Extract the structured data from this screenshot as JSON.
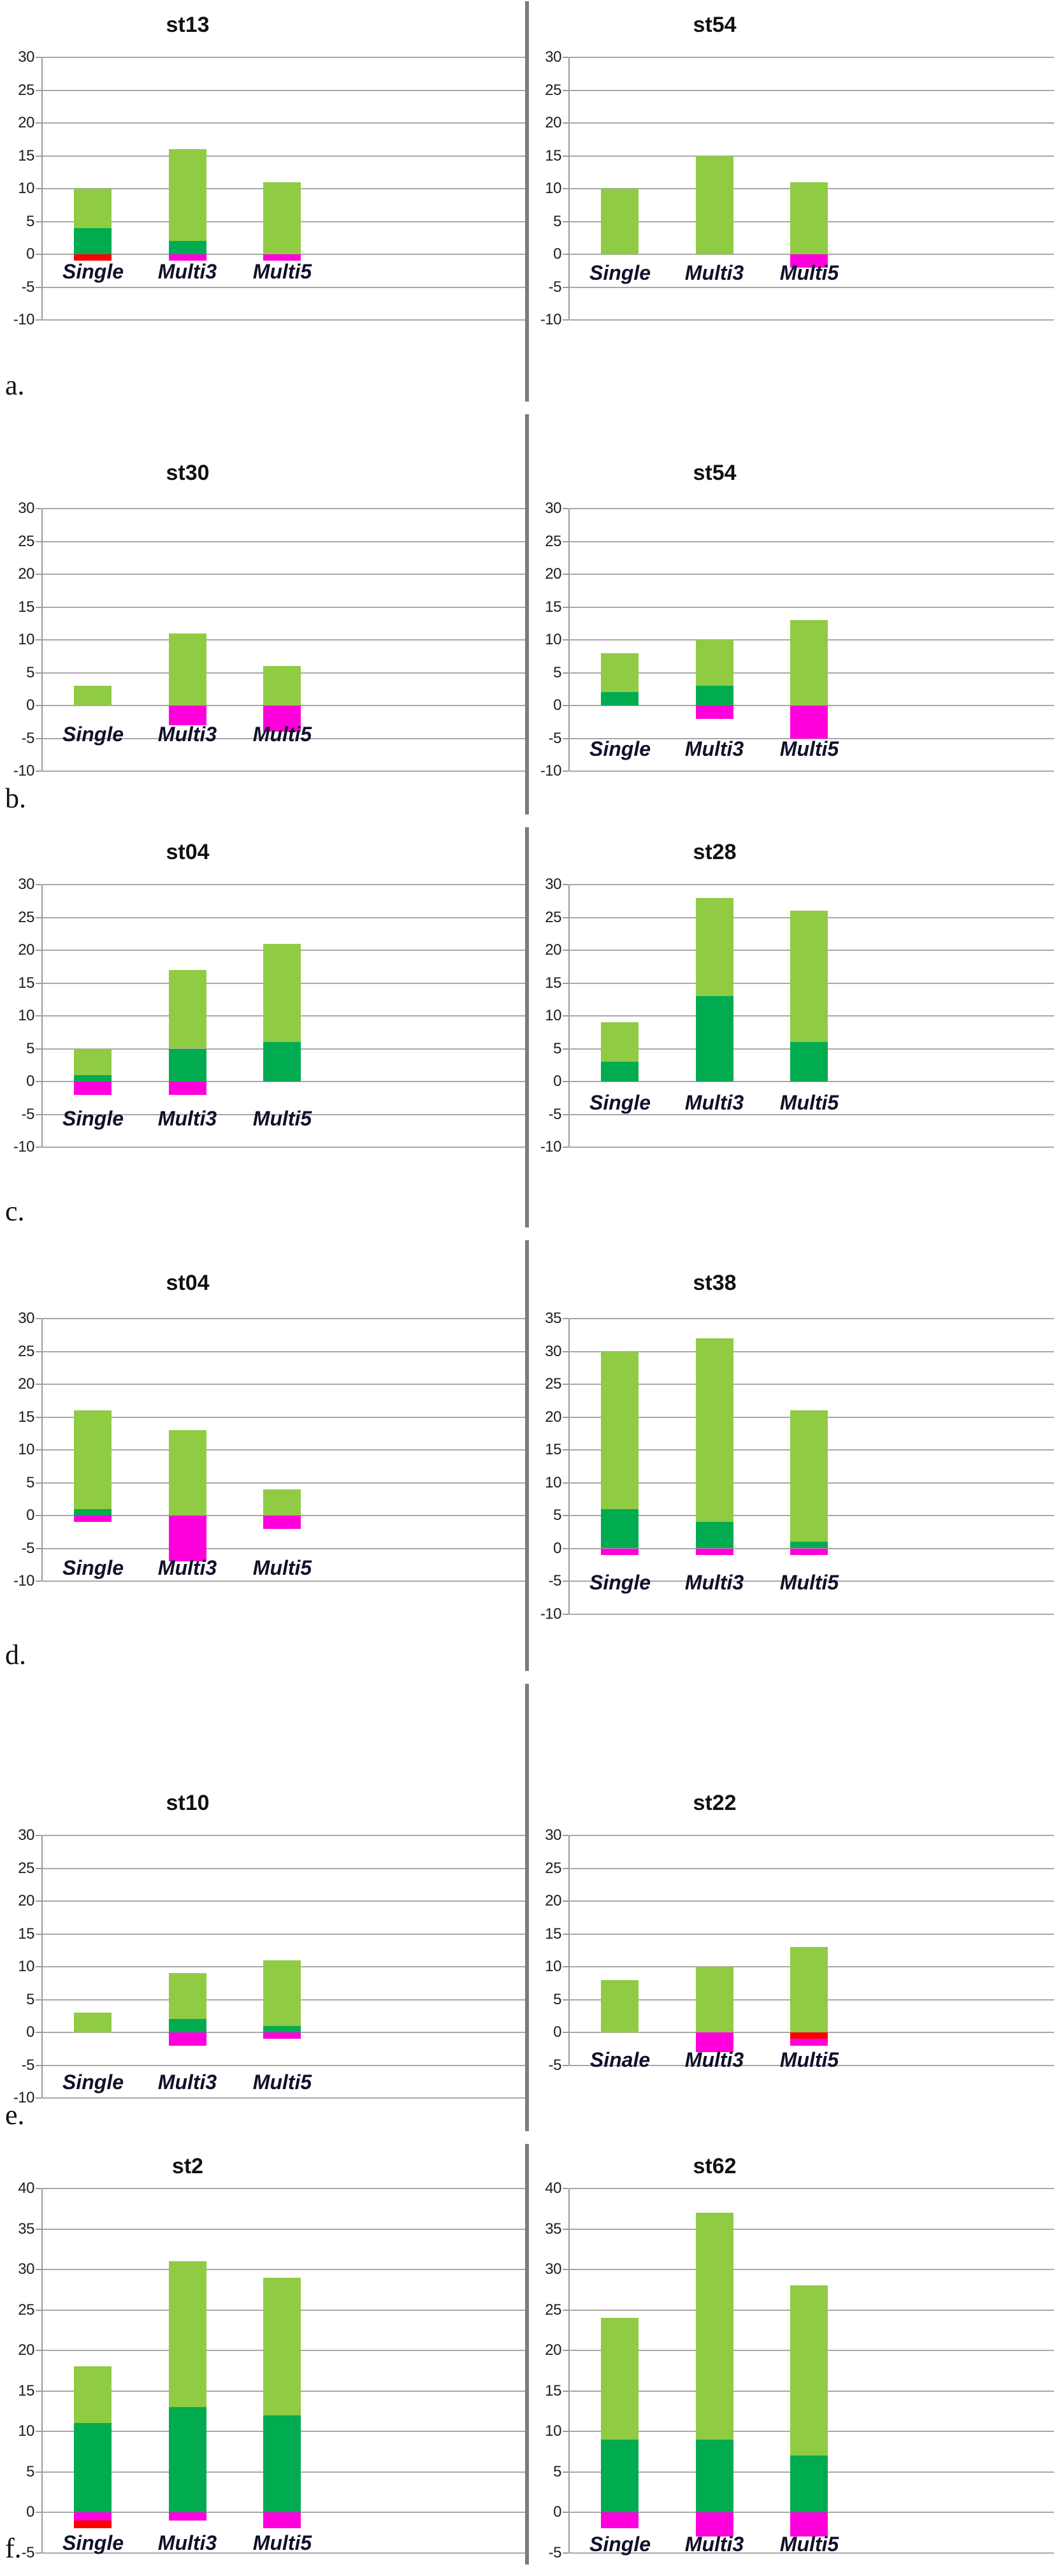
{
  "figure": {
    "rows": [
      {
        "letter": "a."
      },
      {
        "letter": "b."
      },
      {
        "letter": "c."
      },
      {
        "letter": "d."
      },
      {
        "letter": "e."
      },
      {
        "letter": "f."
      }
    ]
  },
  "colors": {
    "light_green": "#8FCB43",
    "dark_green": "#00AC4F",
    "magenta": "#FF00DC",
    "red": "#FE0000",
    "gridline": "#A8A8A8",
    "axis_line": "#9B9B9B",
    "divider": "#7B7B7B",
    "title_text": "#111111",
    "tick_text": "#1C1C1C",
    "category_text": "#10102A"
  },
  "chart_data": [
    {
      "type": "bar",
      "stacked": true,
      "title": "st13",
      "position": "row-a-left",
      "ylim": [
        -10,
        30
      ],
      "yticks": [
        30,
        25,
        20,
        15,
        10,
        5,
        0,
        -5,
        -10
      ],
      "categories": [
        "Single",
        "Multi3",
        "Multi5"
      ],
      "bars": [
        {
          "category": "Single",
          "segments": [
            {
              "color": "dark_green",
              "from": 0,
              "to": 4
            },
            {
              "color": "light_green",
              "from": 4,
              "to": 10
            },
            {
              "color": "red",
              "from": -1,
              "to": 0
            }
          ]
        },
        {
          "category": "Multi3",
          "segments": [
            {
              "color": "dark_green",
              "from": 0,
              "to": 2
            },
            {
              "color": "light_green",
              "from": 2,
              "to": 16
            },
            {
              "color": "magenta",
              "from": -1,
              "to": 0
            }
          ]
        },
        {
          "category": "Multi5",
          "segments": [
            {
              "color": "light_green",
              "from": 0,
              "to": 11
            },
            {
              "color": "magenta",
              "from": -1,
              "to": 0
            }
          ]
        }
      ]
    },
    {
      "type": "bar",
      "stacked": true,
      "title": "st54",
      "position": "row-a-right",
      "ylim": [
        -10,
        30
      ],
      "yticks": [
        30,
        25,
        20,
        15,
        10,
        5,
        0,
        -5,
        -10
      ],
      "categories": [
        "Single",
        "Multi3",
        "Multi5"
      ],
      "bars": [
        {
          "category": "Single",
          "segments": [
            {
              "color": "light_green",
              "from": 0,
              "to": 10
            }
          ]
        },
        {
          "category": "Multi3",
          "segments": [
            {
              "color": "light_green",
              "from": 0,
              "to": 15
            }
          ]
        },
        {
          "category": "Multi5",
          "segments": [
            {
              "color": "light_green",
              "from": 0,
              "to": 11
            },
            {
              "color": "magenta",
              "from": -2,
              "to": 0
            }
          ]
        }
      ]
    },
    {
      "type": "bar",
      "stacked": true,
      "title": "st30",
      "position": "row-b-left",
      "ylim": [
        -10,
        30
      ],
      "yticks": [
        30,
        25,
        20,
        15,
        10,
        5,
        0,
        -5,
        -10
      ],
      "categories": [
        "Single",
        "Multi3",
        "Multi5"
      ],
      "bars": [
        {
          "category": "Single",
          "segments": [
            {
              "color": "light_green",
              "from": 0,
              "to": 3
            }
          ]
        },
        {
          "category": "Multi3",
          "segments": [
            {
              "color": "light_green",
              "from": 0,
              "to": 11
            },
            {
              "color": "magenta",
              "from": -3,
              "to": 0
            }
          ]
        },
        {
          "category": "Multi5",
          "segments": [
            {
              "color": "light_green",
              "from": 0,
              "to": 6
            },
            {
              "color": "magenta",
              "from": -4,
              "to": 0
            }
          ]
        }
      ]
    },
    {
      "type": "bar",
      "stacked": true,
      "title": "st54",
      "position": "row-b-right",
      "ylim": [
        -10,
        30
      ],
      "yticks": [
        30,
        25,
        20,
        15,
        10,
        5,
        0,
        -5,
        -10
      ],
      "categories": [
        "Single",
        "Multi3",
        "Multi5"
      ],
      "bars": [
        {
          "category": "Single",
          "segments": [
            {
              "color": "dark_green",
              "from": 0,
              "to": 2
            },
            {
              "color": "light_green",
              "from": 2,
              "to": 8
            }
          ]
        },
        {
          "category": "Multi3",
          "segments": [
            {
              "color": "dark_green",
              "from": 0,
              "to": 3
            },
            {
              "color": "light_green",
              "from": 3,
              "to": 10
            },
            {
              "color": "magenta",
              "from": -2,
              "to": 0
            }
          ]
        },
        {
          "category": "Multi5",
          "segments": [
            {
              "color": "light_green",
              "from": 0,
              "to": 13
            },
            {
              "color": "magenta",
              "from": -5,
              "to": 0
            }
          ]
        }
      ]
    },
    {
      "type": "bar",
      "stacked": true,
      "title": "st04",
      "position": "row-c-left",
      "ylim": [
        -10,
        30
      ],
      "yticks": [
        30,
        25,
        20,
        15,
        10,
        5,
        0,
        -5,
        -10
      ],
      "categories": [
        "Single",
        "Multi3",
        "Multi5"
      ],
      "bars": [
        {
          "category": "Single",
          "segments": [
            {
              "color": "dark_green",
              "from": 0,
              "to": 1
            },
            {
              "color": "light_green",
              "from": 1,
              "to": 5
            },
            {
              "color": "magenta",
              "from": -2,
              "to": 0
            }
          ]
        },
        {
          "category": "Multi3",
          "segments": [
            {
              "color": "dark_green",
              "from": 0,
              "to": 5
            },
            {
              "color": "light_green",
              "from": 5,
              "to": 17
            },
            {
              "color": "magenta",
              "from": -2,
              "to": 0
            }
          ]
        },
        {
          "category": "Multi5",
          "segments": [
            {
              "color": "dark_green",
              "from": 0,
              "to": 6
            },
            {
              "color": "light_green",
              "from": 6,
              "to": 21
            }
          ]
        }
      ]
    },
    {
      "type": "bar",
      "stacked": true,
      "title": "st28",
      "position": "row-c-right",
      "ylim": [
        -10,
        30
      ],
      "yticks": [
        30,
        25,
        20,
        15,
        10,
        5,
        0,
        -5,
        -10
      ],
      "categories": [
        "Single",
        "Multi3",
        "Multi5"
      ],
      "bars": [
        {
          "category": "Single",
          "segments": [
            {
              "color": "dark_green",
              "from": 0,
              "to": 3
            },
            {
              "color": "light_green",
              "from": 3,
              "to": 9
            }
          ]
        },
        {
          "category": "Multi3",
          "segments": [
            {
              "color": "dark_green",
              "from": 0,
              "to": 13
            },
            {
              "color": "light_green",
              "from": 13,
              "to": 28
            }
          ]
        },
        {
          "category": "Multi5",
          "segments": [
            {
              "color": "dark_green",
              "from": 0,
              "to": 6
            },
            {
              "color": "light_green",
              "from": 6,
              "to": 26
            }
          ]
        }
      ]
    },
    {
      "type": "bar",
      "stacked": true,
      "title": "st04",
      "position": "row-d-left",
      "ylim": [
        -10,
        30
      ],
      "yticks": [
        30,
        25,
        20,
        15,
        10,
        5,
        0,
        -5,
        -10
      ],
      "categories": [
        "Single",
        "Multi3",
        "Multi5"
      ],
      "bars": [
        {
          "category": "Single",
          "segments": [
            {
              "color": "dark_green",
              "from": 0,
              "to": 1
            },
            {
              "color": "light_green",
              "from": 1,
              "to": 16
            },
            {
              "color": "magenta",
              "from": -1,
              "to": 0
            }
          ]
        },
        {
          "category": "Multi3",
          "segments": [
            {
              "color": "light_green",
              "from": 0,
              "to": 13
            },
            {
              "color": "magenta",
              "from": -7,
              "to": 0
            }
          ]
        },
        {
          "category": "Multi5",
          "segments": [
            {
              "color": "light_green",
              "from": 0,
              "to": 4
            },
            {
              "color": "magenta",
              "from": -2,
              "to": 0
            }
          ]
        }
      ]
    },
    {
      "type": "bar",
      "stacked": true,
      "title": "st38",
      "position": "row-d-right",
      "ylim": [
        -10,
        35
      ],
      "yticks": [
        35,
        30,
        25,
        20,
        15,
        10,
        5,
        0,
        -5,
        -10
      ],
      "categories": [
        "Single",
        "Multi3",
        "Multi5"
      ],
      "bars": [
        {
          "category": "Single",
          "segments": [
            {
              "color": "dark_green",
              "from": 0,
              "to": 6
            },
            {
              "color": "light_green",
              "from": 6,
              "to": 30
            },
            {
              "color": "magenta",
              "from": -1,
              "to": 0
            }
          ]
        },
        {
          "category": "Multi3",
          "segments": [
            {
              "color": "dark_green",
              "from": 0,
              "to": 4
            },
            {
              "color": "light_green",
              "from": 4,
              "to": 32
            },
            {
              "color": "magenta",
              "from": -1,
              "to": 0
            }
          ]
        },
        {
          "category": "Multi5",
          "segments": [
            {
              "color": "dark_green",
              "from": 0,
              "to": 1
            },
            {
              "color": "light_green",
              "from": 1,
              "to": 21
            },
            {
              "color": "magenta",
              "from": -1,
              "to": 0
            }
          ]
        }
      ]
    },
    {
      "type": "bar",
      "stacked": true,
      "title": "st10",
      "position": "row-e-left",
      "ylim": [
        -10,
        30
      ],
      "yticks": [
        30,
        25,
        20,
        15,
        10,
        5,
        0,
        -5,
        -10
      ],
      "categories": [
        "Single",
        "Multi3",
        "Multi5"
      ],
      "bars": [
        {
          "category": "Single",
          "segments": [
            {
              "color": "light_green",
              "from": 0,
              "to": 3
            }
          ]
        },
        {
          "category": "Multi3",
          "segments": [
            {
              "color": "dark_green",
              "from": 0,
              "to": 2
            },
            {
              "color": "light_green",
              "from": 2,
              "to": 9
            },
            {
              "color": "magenta",
              "from": -2,
              "to": 0
            }
          ]
        },
        {
          "category": "Multi5",
          "segments": [
            {
              "color": "dark_green",
              "from": 0,
              "to": 1
            },
            {
              "color": "light_green",
              "from": 1,
              "to": 11
            },
            {
              "color": "magenta",
              "from": -1,
              "to": 0
            }
          ]
        }
      ]
    },
    {
      "type": "bar",
      "stacked": true,
      "title": "st22",
      "position": "row-e-right",
      "ylim": [
        -5,
        30
      ],
      "yticks": [
        30,
        25,
        20,
        15,
        10,
        5,
        0,
        -5
      ],
      "categories": [
        "Sinale",
        "Multi3",
        "Multi5"
      ],
      "bars": [
        {
          "category": "Sinale",
          "segments": [
            {
              "color": "light_green",
              "from": 0,
              "to": 8
            }
          ]
        },
        {
          "category": "Multi3",
          "segments": [
            {
              "color": "light_green",
              "from": 0,
              "to": 10
            },
            {
              "color": "magenta",
              "from": -3,
              "to": 0
            }
          ]
        },
        {
          "category": "Multi5",
          "segments": [
            {
              "color": "light_green",
              "from": 0,
              "to": 13
            },
            {
              "color": "red",
              "from": -1,
              "to": 0
            },
            {
              "color": "magenta",
              "from": -2,
              "to": -1
            }
          ]
        }
      ]
    },
    {
      "type": "bar",
      "stacked": true,
      "title": "st2",
      "position": "row-f-left",
      "ylim": [
        -5,
        40
      ],
      "yticks": [
        40,
        35,
        30,
        25,
        20,
        15,
        10,
        5,
        0,
        -5
      ],
      "categories": [
        "Single",
        "Multi3",
        "Multi5"
      ],
      "bars": [
        {
          "category": "Single",
          "segments": [
            {
              "color": "dark_green",
              "from": 0,
              "to": 11
            },
            {
              "color": "light_green",
              "from": 11,
              "to": 18
            },
            {
              "color": "magenta",
              "from": -1,
              "to": 0
            },
            {
              "color": "red",
              "from": -2,
              "to": -1
            }
          ]
        },
        {
          "category": "Multi3",
          "segments": [
            {
              "color": "dark_green",
              "from": 0,
              "to": 13
            },
            {
              "color": "light_green",
              "from": 13,
              "to": 31
            },
            {
              "color": "magenta",
              "from": -1,
              "to": 0
            }
          ]
        },
        {
          "category": "Multi5",
          "segments": [
            {
              "color": "dark_green",
              "from": 0,
              "to": 12
            },
            {
              "color": "light_green",
              "from": 12,
              "to": 29
            },
            {
              "color": "magenta",
              "from": -2,
              "to": 0
            }
          ]
        }
      ]
    },
    {
      "type": "bar",
      "stacked": true,
      "title": "st62",
      "position": "row-f-right",
      "ylim": [
        -5,
        40
      ],
      "yticks": [
        40,
        35,
        30,
        25,
        20,
        15,
        10,
        5,
        0,
        -5
      ],
      "categories": [
        "Single",
        "Multi3",
        "Multi5"
      ],
      "bars": [
        {
          "category": "Single",
          "segments": [
            {
              "color": "dark_green",
              "from": 0,
              "to": 9
            },
            {
              "color": "light_green",
              "from": 9,
              "to": 24
            },
            {
              "color": "magenta",
              "from": -2,
              "to": 0
            }
          ]
        },
        {
          "category": "Multi3",
          "segments": [
            {
              "color": "dark_green",
              "from": 0,
              "to": 9
            },
            {
              "color": "light_green",
              "from": 9,
              "to": 37
            },
            {
              "color": "magenta",
              "from": -3,
              "to": 0
            }
          ]
        },
        {
          "category": "Multi5",
          "segments": [
            {
              "color": "dark_green",
              "from": 0,
              "to": 7
            },
            {
              "color": "light_green",
              "from": 7,
              "to": 28
            },
            {
              "color": "magenta",
              "from": -3,
              "to": 0
            }
          ]
        }
      ]
    }
  ]
}
